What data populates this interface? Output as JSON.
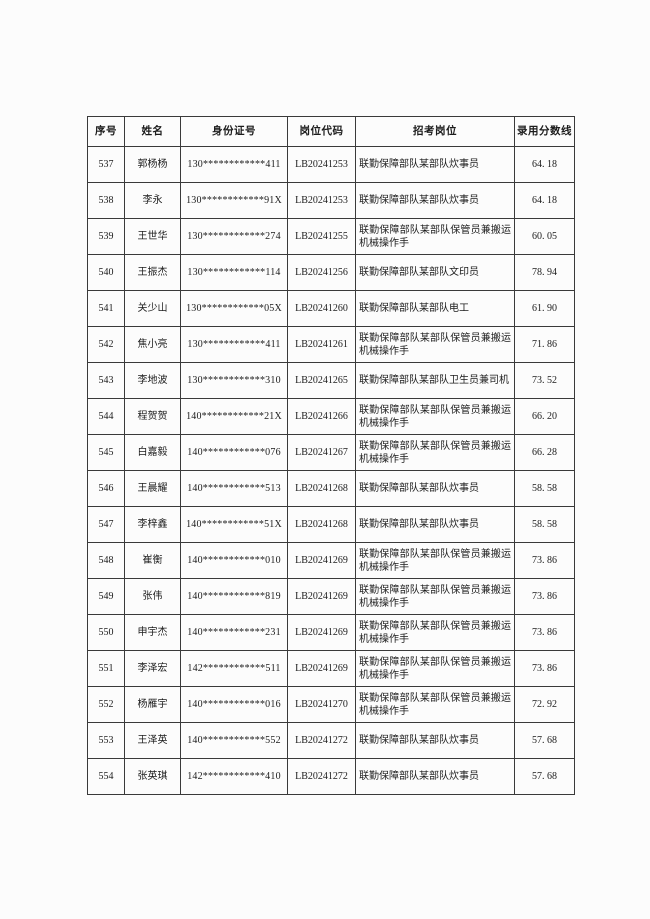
{
  "document": {
    "background_color": "#fcfcfc",
    "text_color": "#1c1c1c",
    "border_color": "#3a3a3a"
  },
  "table": {
    "columns": [
      {
        "key": "index",
        "label": "序号"
      },
      {
        "key": "name",
        "label": "姓名"
      },
      {
        "key": "id-number",
        "label": "身份证号"
      },
      {
        "key": "job-code",
        "label": "岗位代码"
      },
      {
        "key": "position",
        "label": "招考岗位"
      },
      {
        "key": "score-line",
        "label": "录用分数线"
      }
    ],
    "rows": [
      [
        "537",
        "郭杨杨",
        "130************411",
        "LB20241253",
        "联勤保障部队某部队炊事员",
        "64. 18"
      ],
      [
        "538",
        "李永",
        "130************91X",
        "LB20241253",
        "联勤保障部队某部队炊事员",
        "64. 18"
      ],
      [
        "539",
        "王世华",
        "130************274",
        "LB20241255",
        "联勤保障部队某部队保管员兼搬运机械操作手",
        "60. 05"
      ],
      [
        "540",
        "王振杰",
        "130************114",
        "LB20241256",
        "联勤保障部队某部队文印员",
        "78. 94"
      ],
      [
        "541",
        "关少山",
        "130************05X",
        "LB20241260",
        "联勤保障部队某部队电工",
        "61. 90"
      ],
      [
        "542",
        "焦小亮",
        "130************411",
        "LB20241261",
        "联勤保障部队某部队保管员兼搬运机械操作手",
        "71. 86"
      ],
      [
        "543",
        "李地波",
        "130************310",
        "LB20241265",
        "联勤保障部队某部队卫生员兼司机",
        "73. 52"
      ],
      [
        "544",
        "程贺贺",
        "140************21X",
        "LB20241266",
        "联勤保障部队某部队保管员兼搬运机械操作手",
        "66. 20"
      ],
      [
        "545",
        "白嘉毅",
        "140************076",
        "LB20241267",
        "联勤保障部队某部队保管员兼搬运机械操作手",
        "66. 28"
      ],
      [
        "546",
        "王晨耀",
        "140************513",
        "LB20241268",
        "联勤保障部队某部队炊事员",
        "58. 58"
      ],
      [
        "547",
        "李梓鑫",
        "140************51X",
        "LB20241268",
        "联勤保障部队某部队炊事员",
        "58. 58"
      ],
      [
        "548",
        "崔衡",
        "140************010",
        "LB20241269",
        "联勤保障部队某部队保管员兼搬运机械操作手",
        "73. 86"
      ],
      [
        "549",
        "张伟",
        "140************819",
        "LB20241269",
        "联勤保障部队某部队保管员兼搬运机械操作手",
        "73. 86"
      ],
      [
        "550",
        "申宇杰",
        "140************231",
        "LB20241269",
        "联勤保障部队某部队保管员兼搬运机械操作手",
        "73. 86"
      ],
      [
        "551",
        "李泽宏",
        "142************511",
        "LB20241269",
        "联勤保障部队某部队保管员兼搬运机械操作手",
        "73. 86"
      ],
      [
        "552",
        "杨雁宇",
        "140************016",
        "LB20241270",
        "联勤保障部队某部队保管员兼搬运机械操作手",
        "72. 92"
      ],
      [
        "553",
        "王泽英",
        "140************552",
        "LB20241272",
        "联勤保障部队某部队炊事员",
        "57. 68"
      ],
      [
        "554",
        "张英琪",
        "142************410",
        "LB20241272",
        "联勤保障部队某部队炊事员",
        "57. 68"
      ]
    ]
  }
}
